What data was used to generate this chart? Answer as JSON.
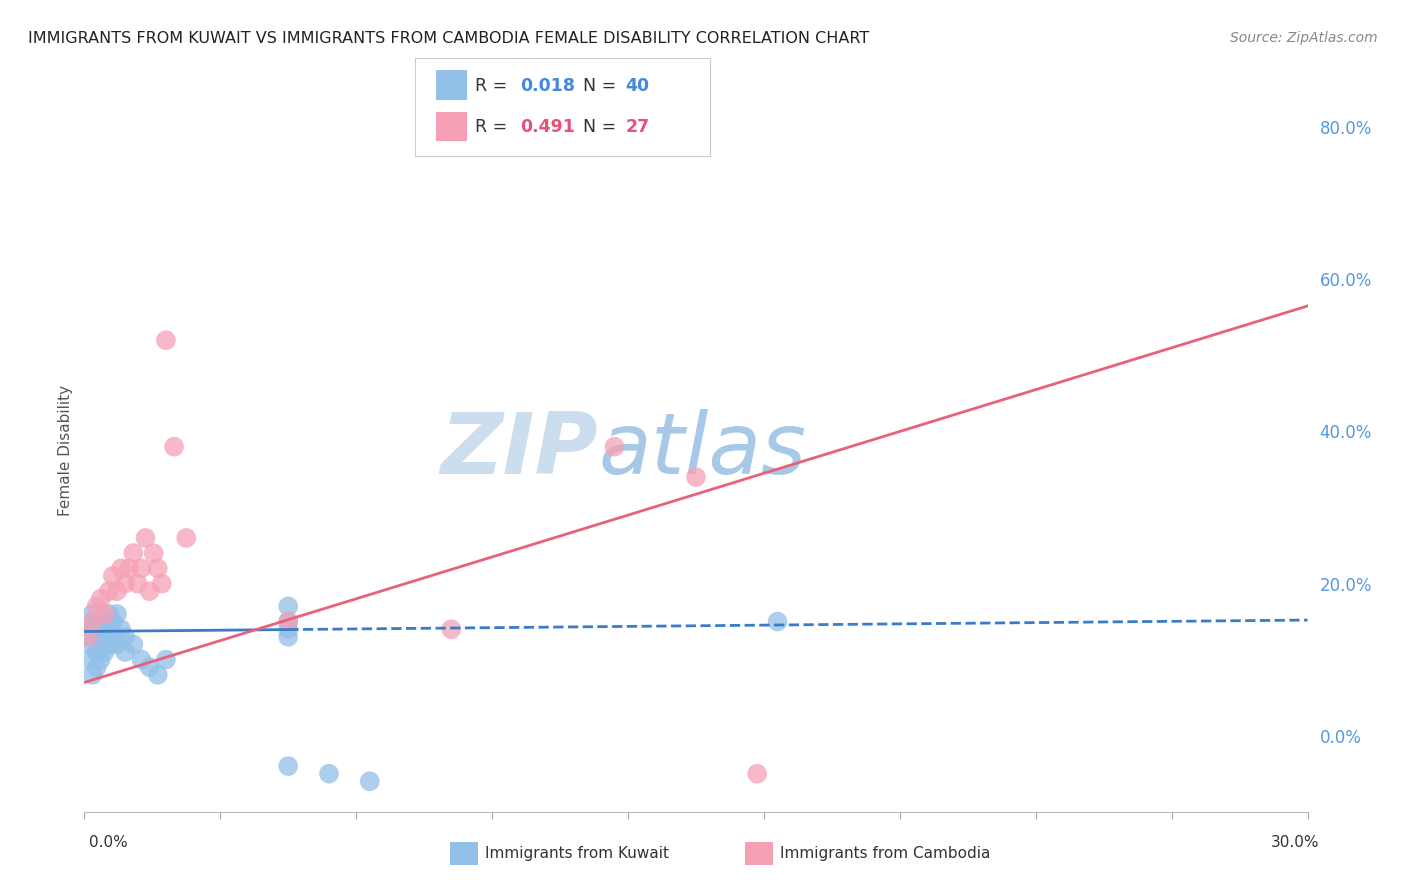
{
  "title": "IMMIGRANTS FROM KUWAIT VS IMMIGRANTS FROM CAMBODIA FEMALE DISABILITY CORRELATION CHART",
  "source": "Source: ZipAtlas.com",
  "ylabel": "Female Disability",
  "xlim": [
    0.0,
    0.3
  ],
  "ylim": [
    -0.1,
    0.85
  ],
  "right_yticks": [
    0.0,
    0.2,
    0.4,
    0.6,
    0.8
  ],
  "right_yticklabels": [
    "0.0%",
    "20.0%",
    "40.0%",
    "60.0%",
    "80.0%"
  ],
  "kuwait_R": 0.018,
  "kuwait_N": 40,
  "cambodia_R": 0.491,
  "cambodia_N": 27,
  "kuwait_color": "#92c0e8",
  "cambodia_color": "#f5a0b5",
  "kuwait_line_color": "#3a7cc7",
  "cambodia_line_color": "#e8607a",
  "watermark_color": "#cce0f5",
  "background_color": "#ffffff",
  "grid_color": "#d8d8d8",
  "kuwait_x": [
    0.001,
    0.001,
    0.001,
    0.002,
    0.002,
    0.002,
    0.002,
    0.003,
    0.003,
    0.003,
    0.003,
    0.004,
    0.004,
    0.004,
    0.005,
    0.005,
    0.005,
    0.006,
    0.006,
    0.006,
    0.007,
    0.007,
    0.008,
    0.008,
    0.009,
    0.01,
    0.01,
    0.012,
    0.014,
    0.016,
    0.018,
    0.02,
    0.05,
    0.05,
    0.05,
    0.05,
    0.17,
    0.05,
    0.06,
    0.07
  ],
  "kuwait_y": [
    0.14,
    0.13,
    0.1,
    0.16,
    0.14,
    0.12,
    0.08,
    0.15,
    0.13,
    0.11,
    0.09,
    0.14,
    0.12,
    0.1,
    0.15,
    0.13,
    0.11,
    0.16,
    0.14,
    0.12,
    0.15,
    0.13,
    0.16,
    0.12,
    0.14,
    0.13,
    0.11,
    0.12,
    0.1,
    0.09,
    0.08,
    0.1,
    0.17,
    0.15,
    0.13,
    0.14,
    0.15,
    -0.04,
    -0.05,
    -0.06
  ],
  "cambodia_x": [
    0.001,
    0.002,
    0.003,
    0.004,
    0.005,
    0.006,
    0.007,
    0.008,
    0.009,
    0.01,
    0.011,
    0.012,
    0.013,
    0.014,
    0.015,
    0.016,
    0.017,
    0.018,
    0.019,
    0.02,
    0.022,
    0.025,
    0.05,
    0.09,
    0.13,
    0.15,
    0.165
  ],
  "cambodia_y": [
    0.13,
    0.15,
    0.17,
    0.18,
    0.16,
    0.19,
    0.21,
    0.19,
    0.22,
    0.2,
    0.22,
    0.24,
    0.2,
    0.22,
    0.26,
    0.19,
    0.24,
    0.22,
    0.2,
    0.52,
    0.38,
    0.26,
    0.15,
    0.14,
    0.38,
    0.34,
    -0.05
  ],
  "kuw_line_intercept": 0.137,
  "kuw_line_slope": 0.05,
  "cam_line_intercept": 0.07,
  "cam_line_slope": 1.65
}
